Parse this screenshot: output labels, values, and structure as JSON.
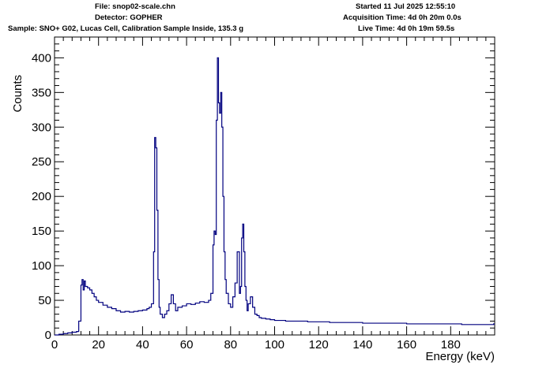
{
  "header": {
    "file": "File: snop02-scale.chn",
    "detector": "Detector: GOPHER",
    "sample": "Sample: SNO+ G02, Lucas Cell, Calibration Sample Inside, 135.3 g",
    "started": "Started 11 Jul 2025 12:55:10",
    "acquisition_time": "Acquisition Time: 4d 0h 20m 0.0s",
    "live_time": "Live Time: 4d 0h 19m 59.5s"
  },
  "colors": {
    "line": "#00007f",
    "axis": "#000000",
    "background": "#ffffff"
  },
  "chart_data": {
    "type": "line",
    "step": true,
    "xlabel": "Energy (keV)",
    "ylabel": "Counts",
    "xlim": [
      0,
      200
    ],
    "ylim": [
      0,
      430
    ],
    "xticks": [
      0,
      20,
      40,
      60,
      80,
      100,
      120,
      140,
      160,
      180
    ],
    "yticks": [
      0,
      50,
      100,
      150,
      200,
      250,
      300,
      350,
      400
    ],
    "grid": false,
    "legend": "none",
    "series": [
      {
        "x": [
          0,
          2,
          4,
          6,
          8,
          10,
          11,
          12,
          12.5,
          13,
          13.5,
          14,
          15,
          16,
          17,
          18,
          19,
          20,
          22,
          24,
          26,
          28,
          30,
          32,
          34,
          36,
          38,
          40,
          42,
          43,
          44,
          45,
          45.5,
          46,
          46.5,
          47,
          47.5,
          48,
          49,
          50,
          51,
          52,
          53,
          54,
          55,
          56,
          58,
          60,
          62,
          64,
          66,
          68,
          70,
          71,
          72,
          72.5,
          73,
          73.5,
          74,
          74.5,
          75,
          75.5,
          76,
          76.5,
          77,
          77.5,
          78,
          79,
          80,
          81,
          82,
          83,
          84,
          84.5,
          85,
          85.5,
          86,
          86.5,
          87,
          87.5,
          88,
          89,
          90,
          91,
          92,
          93,
          94,
          96,
          98,
          100,
          105,
          110,
          115,
          120,
          125,
          130,
          135,
          140,
          145,
          150,
          155,
          160,
          165,
          170,
          175,
          180,
          185,
          190,
          195,
          199.5
        ],
        "y": [
          0,
          1,
          2,
          3,
          4,
          5,
          20,
          72,
          80,
          65,
          78,
          70,
          68,
          65,
          60,
          55,
          50,
          47,
          43,
          40,
          38,
          35,
          33,
          34,
          33,
          34,
          35,
          36,
          38,
          40,
          45,
          120,
          285,
          270,
          180,
          80,
          40,
          30,
          25,
          30,
          35,
          45,
          58,
          45,
          35,
          40,
          42,
          45,
          44,
          46,
          48,
          47,
          50,
          60,
          130,
          150,
          145,
          310,
          400,
          335,
          320,
          350,
          300,
          200,
          120,
          80,
          60,
          45,
          40,
          55,
          75,
          120,
          60,
          70,
          140,
          160,
          120,
          70,
          50,
          35,
          45,
          55,
          40,
          30,
          28,
          25,
          24,
          23,
          22,
          21,
          20,
          20,
          19,
          19,
          18,
          18,
          18,
          17,
          17,
          17,
          17,
          16,
          16,
          16,
          16,
          16,
          15,
          15,
          15,
          16
        ]
      }
    ]
  }
}
